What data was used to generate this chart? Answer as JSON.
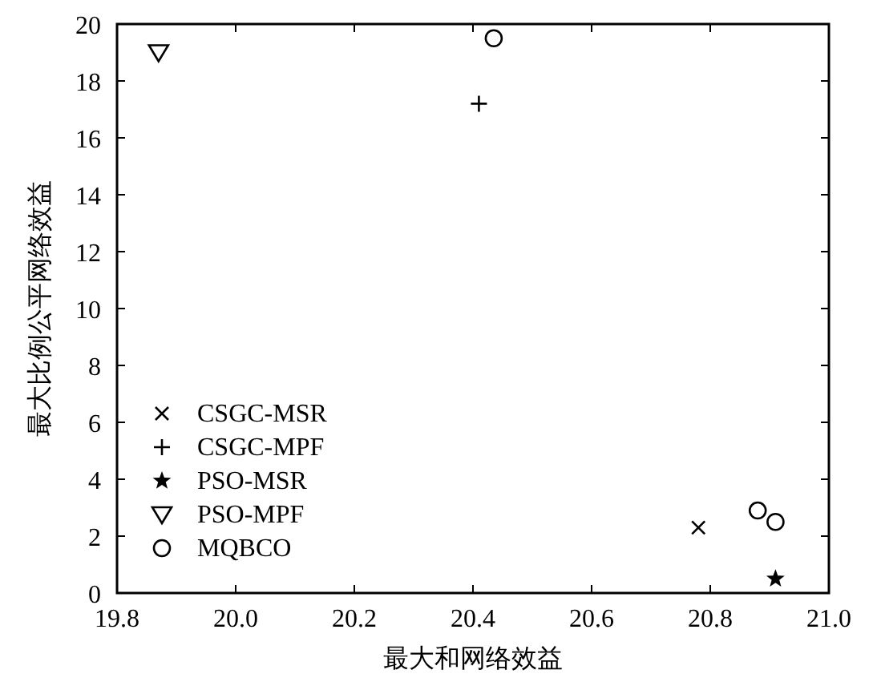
{
  "chart_data": {
    "type": "scatter",
    "xlabel": "最大和网络效益",
    "ylabel": "最大比例公平网络效益",
    "xlim": [
      19.8,
      21.0
    ],
    "xticks": [
      {
        "value": 19.8,
        "label": "19.8"
      },
      {
        "value": 20.0,
        "label": "20.0"
      },
      {
        "value": 20.2,
        "label": "20.2"
      },
      {
        "value": 20.4,
        "label": "20.4"
      },
      {
        "value": 20.6,
        "label": "20.6"
      },
      {
        "value": 20.8,
        "label": "20.8"
      },
      {
        "value": 21.0,
        "label": "21.0"
      }
    ],
    "ylim": [
      0,
      20
    ],
    "yticks": [
      0,
      2,
      4,
      6,
      8,
      10,
      12,
      14,
      16,
      18,
      20
    ],
    "grid": false,
    "legend": "bottom left",
    "series": [
      {
        "name": "CSGC-MSR",
        "color": "#000000",
        "marker": "cross",
        "x": [
          20.78
        ],
        "values": [
          2.3
        ]
      },
      {
        "name": "CSGC-MPF",
        "color": "#000000",
        "marker": "plus",
        "x": [
          20.41
        ],
        "values": [
          17.2
        ]
      },
      {
        "name": "PSO-MSR",
        "color": "#000000",
        "marker": "star",
        "x": [
          20.91
        ],
        "values": [
          0.5
        ]
      },
      {
        "name": "PSO-MPF",
        "color": "#000000",
        "marker": "triangle-down",
        "x": [
          19.87
        ],
        "values": [
          19.0
        ]
      },
      {
        "name": "MQBCO",
        "color": "#000000",
        "marker": "circle",
        "x": [
          20.435,
          20.88,
          20.91
        ],
        "values": [
          19.5,
          2.9,
          2.5
        ]
      }
    ]
  }
}
